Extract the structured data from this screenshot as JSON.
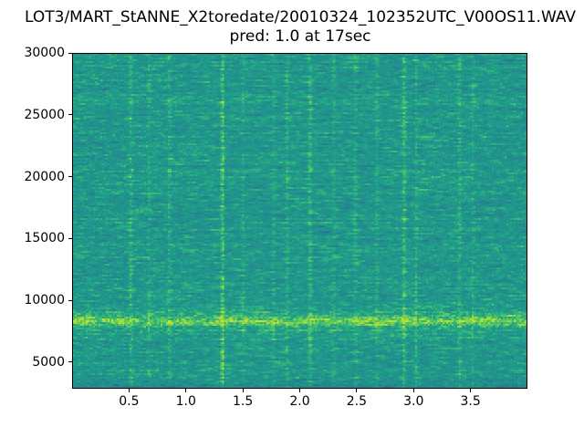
{
  "figure": {
    "title": "LOT3/MART_StANNE_X2toredate/20010324_102352UTC_V00OS11.WAV",
    "subtitle": "pred: 1.0 at 17sec",
    "background_color": "#ffffff",
    "text_color": "#000000"
  },
  "chart_data": {
    "type": "heatmap",
    "subtype": "audio-spectrogram",
    "title": "LOT3/MART_StANNE_X2toredate/20010324_102352UTC_V00OS11.WAV",
    "subtitle": "pred: 1.0 at 17sec",
    "xlabel": "",
    "ylabel": "",
    "xlim": [
      0,
      4
    ],
    "ylim": [
      2850,
      30000
    ],
    "x_ticks": [
      0.5,
      1.0,
      1.5,
      2.0,
      2.5,
      3.0,
      3.5
    ],
    "x_tick_labels": [
      "0.5",
      "1.0",
      "1.5",
      "2.0",
      "2.5",
      "3.0",
      "3.5"
    ],
    "y_ticks": [
      5000,
      10000,
      15000,
      20000,
      25000,
      30000
    ],
    "y_tick_labels": [
      "5000",
      "10000",
      "15000",
      "20000",
      "25000",
      "30000"
    ],
    "grid": false,
    "legend": null,
    "colormap": "viridis",
    "colormap_anchors": [
      "#440154",
      "#482878",
      "#3e4a89",
      "#31688e",
      "#26828e",
      "#21918c",
      "#1f9e89",
      "#35b779",
      "#6dcd59",
      "#b4de2c",
      "#fde725"
    ],
    "base_color": "#21918c",
    "bright_streak_color": "#5ec962",
    "dark_speckle_color": "#31688e",
    "background_value": 0.545,
    "background_value_range": [
      0.35,
      0.75
    ],
    "horizontal_band": {
      "center_hz": 8300,
      "sigma_hz": 380,
      "boost": 0.2,
      "halo_sigma_hz": 900,
      "halo_boost": 0.04
    },
    "low_freq_darkening": {
      "below_hz": 3800,
      "max_drop": 0.1
    },
    "vertical_streaks": [
      {
        "t": 0.51,
        "strength": 0.1,
        "sigma_s": 0.012
      },
      {
        "t": 0.67,
        "strength": 0.07,
        "sigma_s": 0.01
      },
      {
        "t": 0.85,
        "strength": 0.09,
        "sigma_s": 0.012
      },
      {
        "t": 1.32,
        "strength": 0.2,
        "sigma_s": 0.01
      },
      {
        "t": 1.5,
        "strength": 0.06,
        "sigma_s": 0.01
      },
      {
        "t": 1.77,
        "strength": 0.07,
        "sigma_s": 0.01
      },
      {
        "t": 1.89,
        "strength": 0.09,
        "sigma_s": 0.01
      },
      {
        "t": 2.09,
        "strength": 0.12,
        "sigma_s": 0.012
      },
      {
        "t": 2.3,
        "strength": 0.06,
        "sigma_s": 0.01
      },
      {
        "t": 2.49,
        "strength": 0.08,
        "sigma_s": 0.01
      },
      {
        "t": 2.68,
        "strength": 0.08,
        "sigma_s": 0.01
      },
      {
        "t": 2.92,
        "strength": 0.14,
        "sigma_s": 0.012
      },
      {
        "t": 3.03,
        "strength": 0.09,
        "sigma_s": 0.01
      },
      {
        "t": 3.41,
        "strength": 0.09,
        "sigma_s": 0.012
      },
      {
        "t": 3.53,
        "strength": 0.07,
        "sigma_s": 0.01
      }
    ]
  }
}
